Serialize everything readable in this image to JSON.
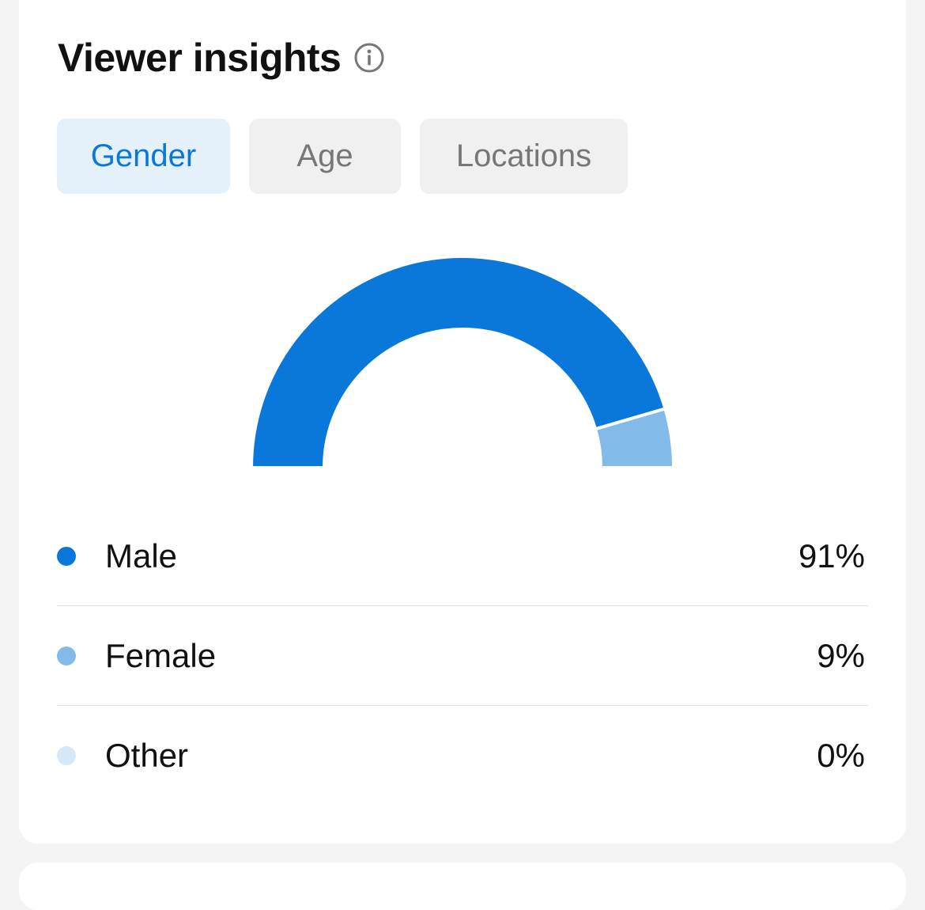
{
  "header": {
    "title": "Viewer insights",
    "info_icon": "info-circle-icon"
  },
  "tabs": [
    {
      "label": "Gender",
      "active": true
    },
    {
      "label": "Age",
      "active": false
    },
    {
      "label": "Locations",
      "active": false
    }
  ],
  "colors": {
    "accent": "#0a78da",
    "male": "#0a78da",
    "female": "#82bbea",
    "other": "#d6e8f8"
  },
  "chart_data": {
    "type": "pie",
    "style": "half-donut",
    "categories": [
      "Male",
      "Female",
      "Other"
    ],
    "values": [
      91,
      9,
      0
    ],
    "labels": [
      "91%",
      "9%",
      "0%"
    ]
  }
}
